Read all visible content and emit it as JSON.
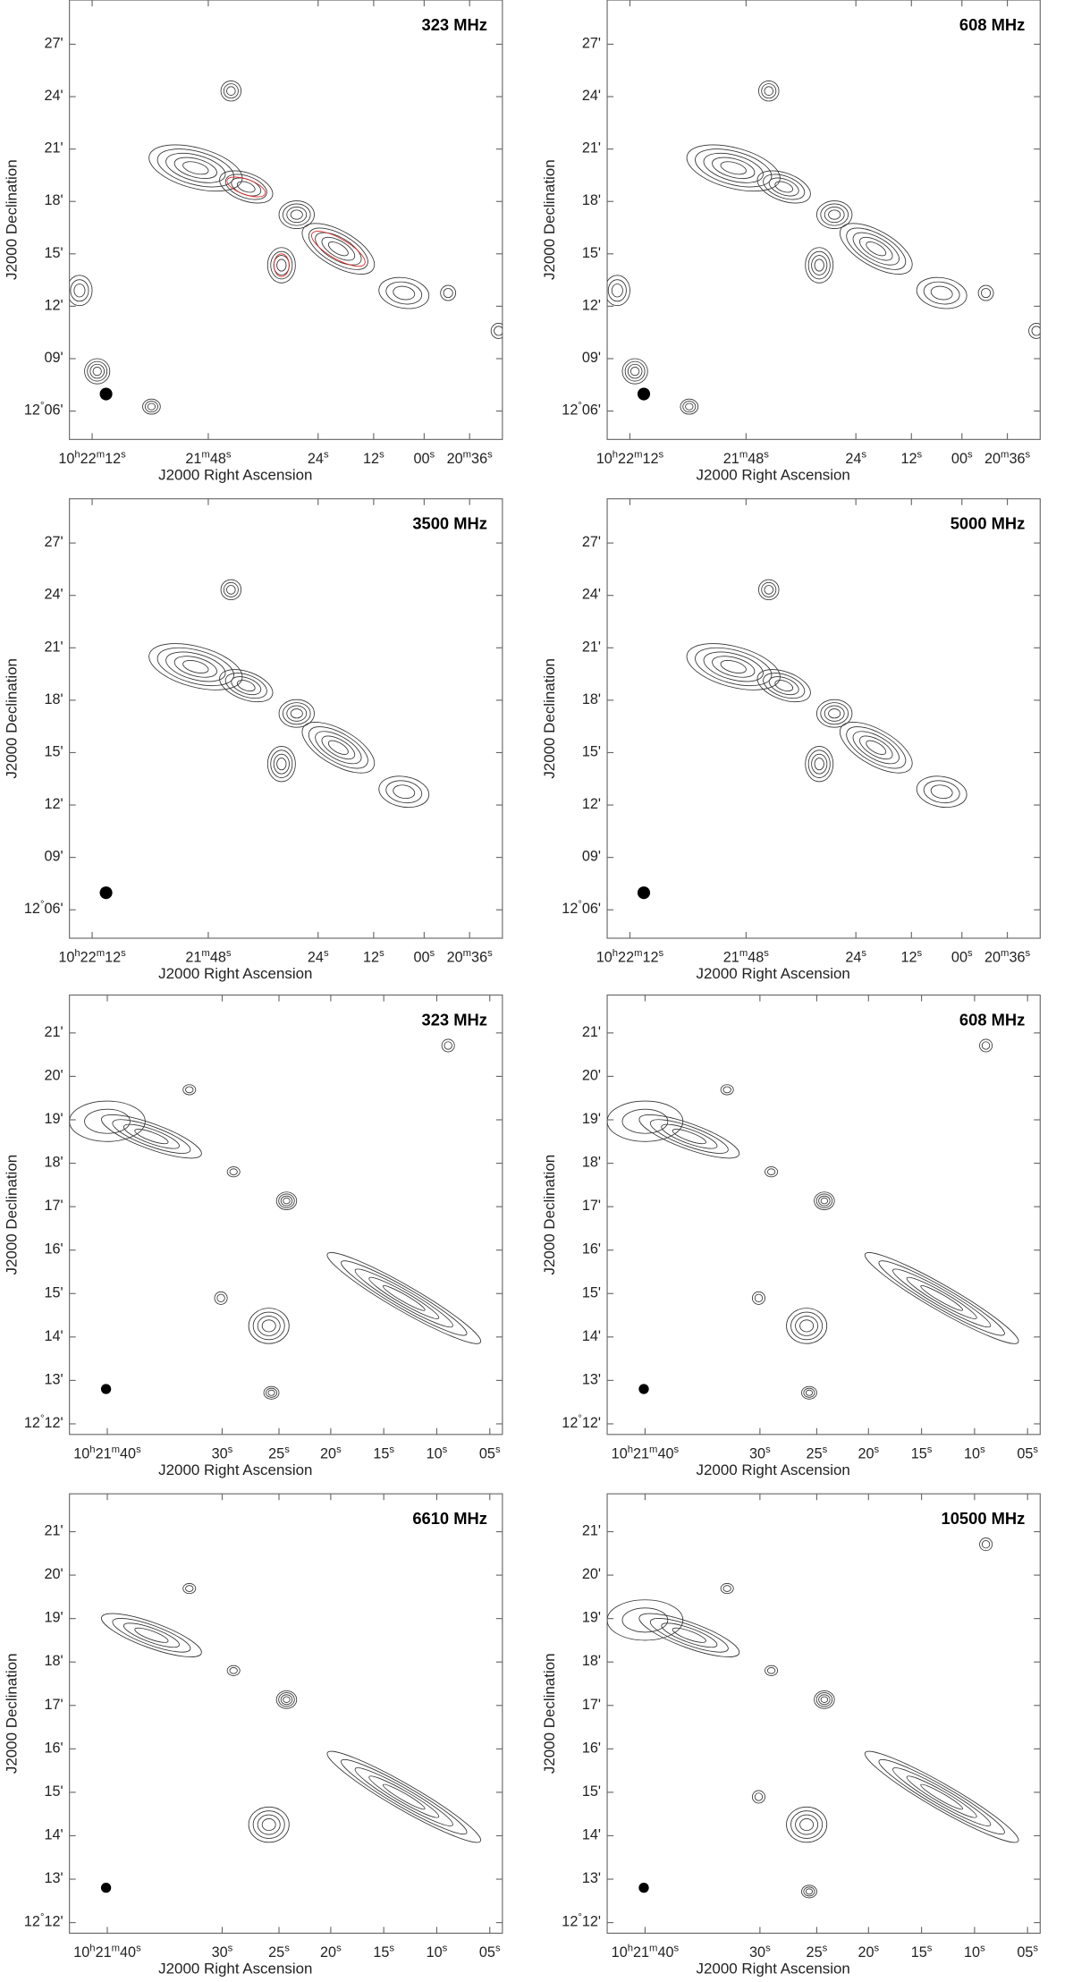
{
  "panels": [
    {
      "label": "323 MHz",
      "y_ticks": [
        "27'",
        "24'",
        "21'",
        "18'",
        "15'",
        "12'",
        "09'",
        "12°06'"
      ],
      "x_ticks": [
        "10h22m12s",
        "21m48s",
        "24s",
        "12s",
        "00s",
        "20m36s"
      ],
      "x_axis_label": "J2000 Right Ascension",
      "y_axis_label": "J2000 Declination"
    },
    {
      "label": "608 MHz",
      "y_ticks": [
        "27'",
        "24'",
        "21'",
        "18'",
        "15'",
        "12'",
        "09'",
        "12°06'"
      ],
      "x_ticks": [
        "10h22m12s",
        "21m48s",
        "24s",
        "12s",
        "00s",
        "20m36s"
      ],
      "x_axis_label": "J2000 Right Ascension",
      "y_axis_label": "J2000 Declination"
    },
    {
      "label": "3500 MHz",
      "y_ticks": [
        "27'",
        "24'",
        "21'",
        "18'",
        "15'",
        "12'",
        "09'",
        "12°06'"
      ],
      "x_ticks": [
        "10h22m12s",
        "21m48s",
        "24s",
        "12s",
        "00s",
        "20m36s"
      ],
      "x_axis_label": "J2000 Right Ascension",
      "y_axis_label": "J2000 Declination"
    },
    {
      "label": "5000 MHz",
      "y_ticks": [
        "27'",
        "24'",
        "21'",
        "18'",
        "15'",
        "12'",
        "09'",
        "12°06'"
      ],
      "x_ticks": [
        "10h22m12s",
        "21m48s",
        "24s",
        "12s",
        "00s",
        "20m36s"
      ],
      "x_axis_label": "J2000 Right Ascension",
      "y_axis_label": "J2000 Declination"
    },
    {
      "label": "323 MHz",
      "y_ticks": [
        "21'",
        "20'",
        "19'",
        "18'",
        "17'",
        "16'",
        "15'",
        "14'",
        "13'",
        "12°12'"
      ],
      "x_ticks": [
        "10h21m40s",
        "30s",
        "25s",
        "20s",
        "15s",
        "10s",
        "05s"
      ],
      "x_axis_label": "J2000 Right Ascension",
      "y_axis_label": "J2000 Declination"
    },
    {
      "label": "608 MHz",
      "y_ticks": [
        "21'",
        "20'",
        "19'",
        "18'",
        "17'",
        "16'",
        "15'",
        "14'",
        "13'",
        "12°12'"
      ],
      "x_ticks": [
        "10h21m40s",
        "30s",
        "25s",
        "20s",
        "15s",
        "10s",
        "05s"
      ],
      "x_axis_label": "J2000 Right Ascension",
      "y_axis_label": "J2000 Declination"
    },
    {
      "label": "6610 MHz",
      "y_ticks": [
        "21'",
        "20'",
        "19'",
        "18'",
        "17'",
        "16'",
        "15'",
        "14'",
        "13'",
        "12°12'"
      ],
      "x_ticks": [
        "10h21m40s",
        "30s",
        "25s",
        "20s",
        "15s",
        "10s",
        "05s"
      ],
      "x_axis_label": "J2000 Right Ascension",
      "y_axis_label": "J2000 Declination"
    },
    {
      "label": "10500 MHz",
      "y_ticks": [
        "21'",
        "20'",
        "19'",
        "18'",
        "17'",
        "16'",
        "15'",
        "14'",
        "13'",
        "12°12'"
      ],
      "x_ticks": [
        "10h21m40s",
        "30s",
        "25s",
        "20s",
        "15s",
        "10s",
        "05s"
      ],
      "x_axis_label": "J2000 Right Ascension",
      "y_axis_label": "J2000 Declination"
    }
  ]
}
